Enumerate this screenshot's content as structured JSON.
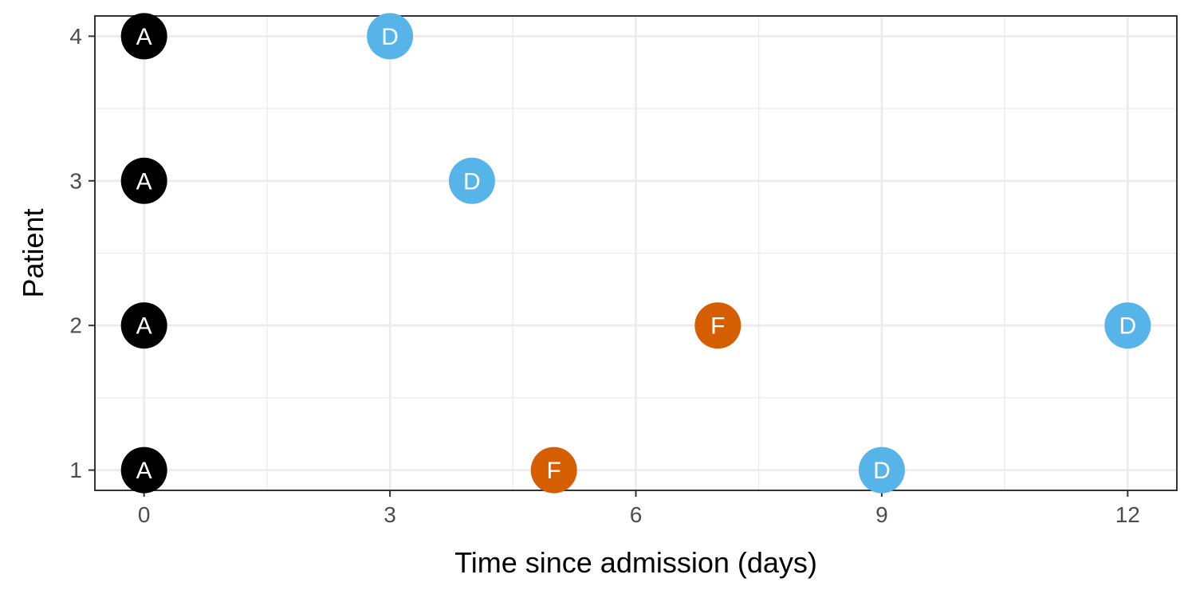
{
  "chart_data": {
    "type": "scatter",
    "title": "",
    "xlabel": "Time since admission (days)",
    "ylabel": "Patient",
    "xlim": [
      -0.6,
      12.6
    ],
    "ylim": [
      0.86,
      4.14
    ],
    "x_ticks": [
      0,
      3,
      6,
      9,
      12
    ],
    "y_ticks": [
      1,
      2,
      3,
      4
    ],
    "grid": true,
    "legend": "none",
    "colors": {
      "A": "#000000",
      "F": "#D55E00",
      "D": "#56B4E9"
    },
    "points": [
      {
        "x": 0,
        "y": 1,
        "label": "A"
      },
      {
        "x": 5,
        "y": 1,
        "label": "F"
      },
      {
        "x": 9,
        "y": 1,
        "label": "D"
      },
      {
        "x": 0,
        "y": 2,
        "label": "A"
      },
      {
        "x": 7,
        "y": 2,
        "label": "F"
      },
      {
        "x": 12,
        "y": 2,
        "label": "D"
      },
      {
        "x": 0,
        "y": 3,
        "label": "A"
      },
      {
        "x": 4,
        "y": 3,
        "label": "D"
      },
      {
        "x": 0,
        "y": 4,
        "label": "A"
      },
      {
        "x": 3,
        "y": 4,
        "label": "D"
      }
    ]
  }
}
